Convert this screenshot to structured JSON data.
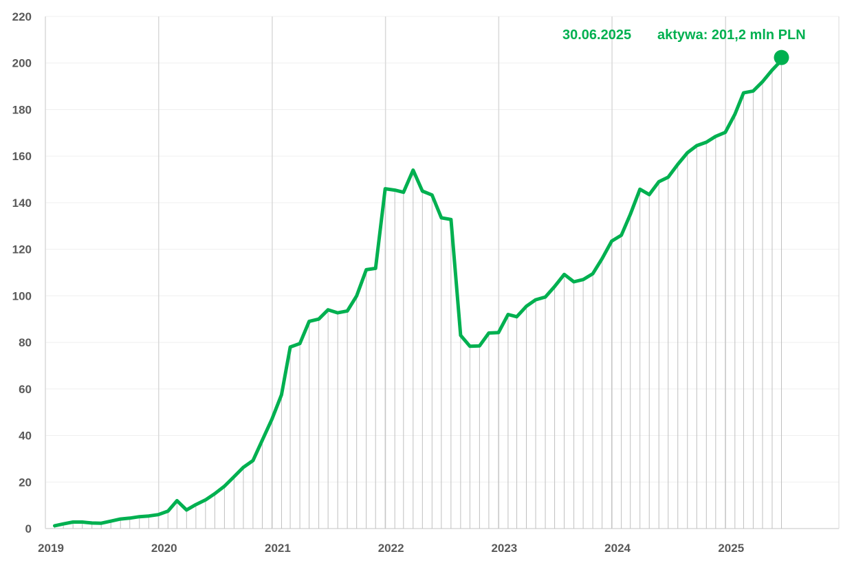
{
  "chart_data": {
    "type": "line",
    "title": "",
    "xlabel": "",
    "ylabel": "",
    "ylim": [
      0,
      220
    ],
    "yticks": [
      0,
      20,
      40,
      60,
      80,
      100,
      120,
      140,
      160,
      180,
      200,
      220
    ],
    "xticks": [
      "2019",
      "2020",
      "2021",
      "2022",
      "2023",
      "2024",
      "2025"
    ],
    "grid": true,
    "series_color": "#00b050",
    "gridline_color": "#d9d9d9",
    "dropline_color": "#bfbfbf",
    "annotation": {
      "date": "30.06.2025",
      "text": "aktywa: 201,2 mln PLN",
      "x": "2025-06-30",
      "y": 201.2
    },
    "series": [
      {
        "values": [
          [
            "2019-01-31",
            1.2
          ],
          [
            "2019-02-28",
            2.0
          ],
          [
            "2019-03-31",
            2.8
          ],
          [
            "2019-04-30",
            2.8
          ],
          [
            "2019-05-31",
            2.4
          ],
          [
            "2019-06-30",
            2.3
          ],
          [
            "2019-07-31",
            3.2
          ],
          [
            "2019-08-31",
            4.1
          ],
          [
            "2019-09-30",
            4.5
          ],
          [
            "2019-10-31",
            5.1
          ],
          [
            "2019-11-30",
            5.4
          ],
          [
            "2019-12-31",
            6.0
          ],
          [
            "2020-01-31",
            7.5
          ],
          [
            "2020-02-29",
            12.0
          ],
          [
            "2020-03-31",
            8.0
          ],
          [
            "2020-04-30",
            10.3
          ],
          [
            "2020-05-31",
            12.3
          ],
          [
            "2020-06-30",
            15.0
          ],
          [
            "2020-07-31",
            18.2
          ],
          [
            "2020-08-31",
            22.3
          ],
          [
            "2020-09-30",
            26.3
          ],
          [
            "2020-10-31",
            29.2
          ],
          [
            "2020-11-30",
            38.0
          ],
          [
            "2020-12-31",
            47.0
          ],
          [
            "2021-01-31",
            57.5
          ],
          [
            "2021-02-28",
            78.0
          ],
          [
            "2021-03-31",
            79.5
          ],
          [
            "2021-04-30",
            89.0
          ],
          [
            "2021-05-31",
            90.0
          ],
          [
            "2021-06-30",
            94.0
          ],
          [
            "2021-07-31",
            92.7
          ],
          [
            "2021-08-31",
            93.5
          ],
          [
            "2021-09-30",
            100.0
          ],
          [
            "2021-10-31",
            111.2
          ],
          [
            "2021-11-30",
            111.8
          ],
          [
            "2021-12-31",
            146.0
          ],
          [
            "2022-01-31",
            145.4
          ],
          [
            "2022-02-28",
            144.5
          ],
          [
            "2022-03-31",
            154.0
          ],
          [
            "2022-04-30",
            145.0
          ],
          [
            "2022-05-31",
            143.3
          ],
          [
            "2022-06-30",
            133.5
          ],
          [
            "2022-07-31",
            132.8
          ],
          [
            "2022-08-31",
            83.0
          ],
          [
            "2022-09-30",
            78.3
          ],
          [
            "2022-10-31",
            78.5
          ],
          [
            "2022-11-30",
            84.0
          ],
          [
            "2022-12-31",
            84.2
          ],
          [
            "2023-01-31",
            92.0
          ],
          [
            "2023-02-28",
            91.0
          ],
          [
            "2023-03-31",
            95.5
          ],
          [
            "2023-04-30",
            98.3
          ],
          [
            "2023-05-31",
            99.5
          ],
          [
            "2023-06-30",
            104.0
          ],
          [
            "2023-07-31",
            109.2
          ],
          [
            "2023-08-31",
            106.0
          ],
          [
            "2023-09-30",
            107.0
          ],
          [
            "2023-10-31",
            109.5
          ],
          [
            "2023-11-30",
            116.0
          ],
          [
            "2023-12-31",
            123.5
          ],
          [
            "2024-01-31",
            126.0
          ],
          [
            "2024-02-29",
            135.0
          ],
          [
            "2024-03-31",
            145.8
          ],
          [
            "2024-04-30",
            143.5
          ],
          [
            "2024-05-31",
            149.0
          ],
          [
            "2024-06-30",
            151.0
          ],
          [
            "2024-07-31",
            156.5
          ],
          [
            "2024-08-31",
            161.5
          ],
          [
            "2024-09-30",
            164.5
          ],
          [
            "2024-10-31",
            166.0
          ],
          [
            "2024-11-30",
            168.5
          ],
          [
            "2024-12-31",
            170.2
          ],
          [
            "2025-01-31",
            178.0
          ],
          [
            "2025-02-28",
            187.2
          ],
          [
            "2025-03-31",
            188.0
          ],
          [
            "2025-04-30",
            192.0
          ],
          [
            "2025-05-31",
            197.0
          ],
          [
            "2025-06-30",
            201.2
          ]
        ]
      }
    ]
  }
}
